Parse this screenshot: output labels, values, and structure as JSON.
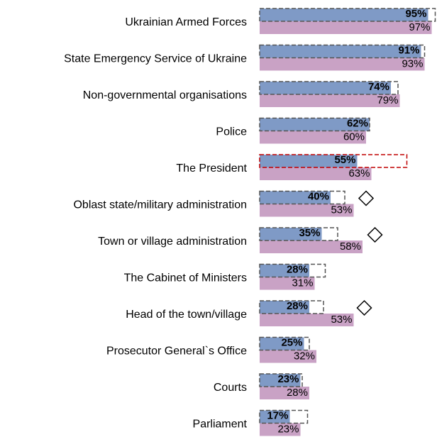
{
  "chart_data": {
    "type": "bar",
    "categories": [
      "Ukrainian Armed Forces",
      "State Emergency Service of Ukraine",
      "Non-governmental organisations",
      "Police",
      "The President",
      "Oblast state/military administration",
      "Town or village administration",
      "The Cabinet of Ministers",
      "Head of the town/village",
      "Prosecutor General`s Office",
      "Courts",
      "Parliament"
    ],
    "series": [
      {
        "color": "#7f9ac6",
        "values": [
          95,
          91,
          74,
          62,
          55,
          40,
          35,
          28,
          28,
          25,
          23,
          17
        ],
        "value_labels": [
          "95%",
          "91%",
          "74%",
          "62%",
          "55%",
          "40%",
          "35%",
          "28%",
          "28%",
          "25%",
          "23%",
          "17%"
        ]
      },
      {
        "color": "#c9a2c5",
        "values": [
          97,
          93,
          79,
          60,
          63,
          53,
          58,
          31,
          53,
          32,
          28,
          23
        ],
        "value_labels": [
          "97%",
          "93%",
          "79%",
          "60%",
          "63%",
          "53%",
          "58%",
          "31%",
          "53%",
          "32%",
          "28%",
          "23%"
        ]
      },
      {
        "style": "dashed-outline",
        "values": [
          99,
          93,
          78,
          62,
          83,
          48,
          44,
          37,
          36,
          28,
          24,
          27
        ],
        "colors": [
          "#555555",
          "#555555",
          "#555555",
          "#555555",
          "#c00000",
          "#555555",
          "#555555",
          "#555555",
          "#555555",
          "#555555",
          "#555555",
          "#555555"
        ]
      },
      {
        "style": "diamond",
        "color": "#000000",
        "values": [
          null,
          null,
          null,
          null,
          null,
          60,
          65,
          null,
          59,
          null,
          null,
          null
        ]
      }
    ]
  }
}
